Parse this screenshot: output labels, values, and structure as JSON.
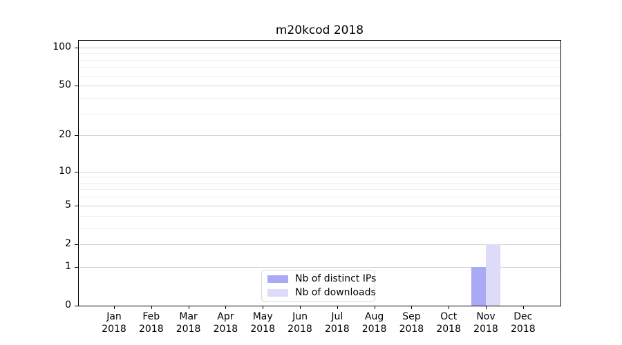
{
  "figure": {
    "title": "m20kcod 2018"
  },
  "chart_data": {
    "type": "bar",
    "title": "m20kcod 2018",
    "categories": [
      "Jan 2018",
      "Feb 2018",
      "Mar 2018",
      "Apr 2018",
      "May 2018",
      "Jun 2018",
      "Jul 2018",
      "Aug 2018",
      "Sep 2018",
      "Oct 2018",
      "Nov 2018",
      "Dec 2018"
    ],
    "series": [
      {
        "name": "Nb of distinct IPs",
        "color": "#a9a9f6",
        "values": [
          0,
          0,
          0,
          0,
          0,
          0,
          0,
          0,
          0,
          0,
          1,
          0
        ]
      },
      {
        "name": "Nb of downloads",
        "color": "#dcdcf8",
        "values": [
          0,
          0,
          0,
          0,
          0,
          0,
          0,
          0,
          0,
          0,
          2,
          0
        ]
      }
    ],
    "xlabel": "",
    "ylabel": "",
    "yscale": "log1p",
    "ylim": [
      0,
      113
    ],
    "y_major_ticks": [
      0,
      1,
      2,
      5,
      10,
      20,
      50,
      100
    ],
    "y_minor_ticks": [
      3,
      4,
      6,
      7,
      8,
      9,
      30,
      40,
      60,
      70,
      80,
      90
    ],
    "grid": true,
    "legend_position": "bottom-center"
  }
}
